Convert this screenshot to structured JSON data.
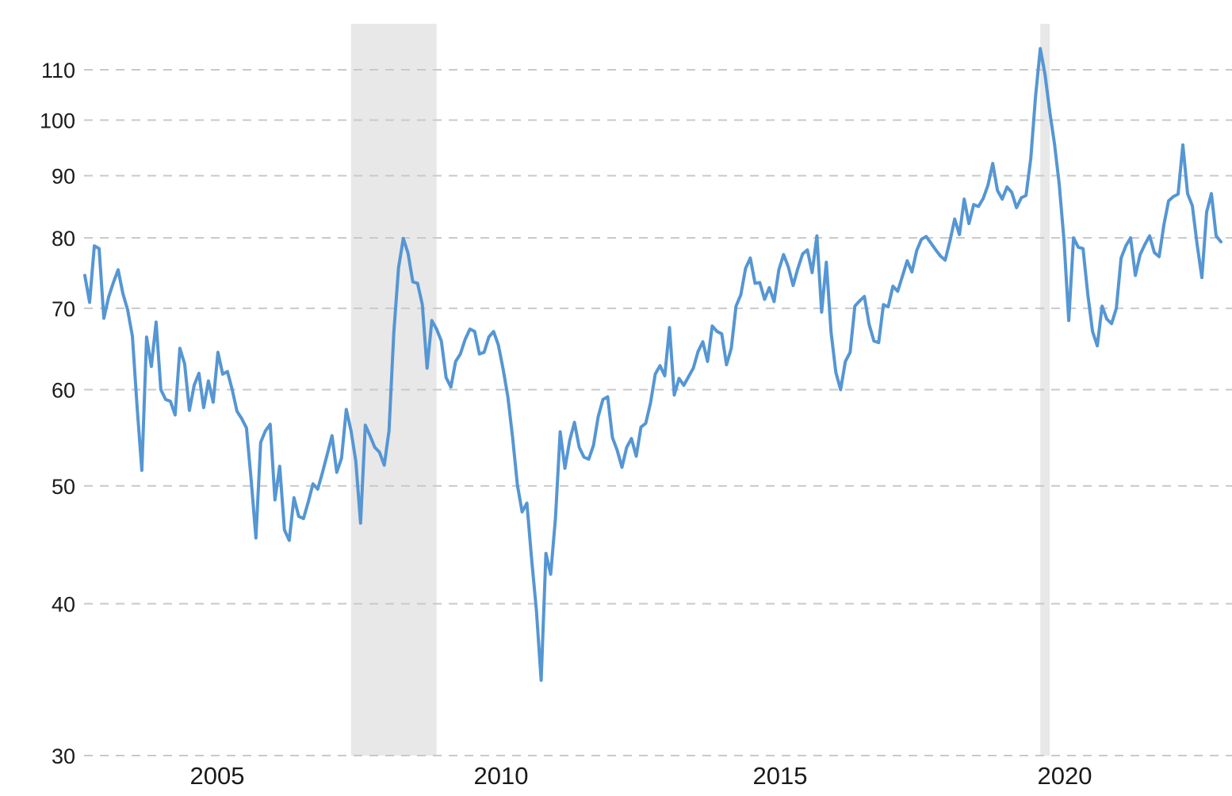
{
  "page": {
    "background_color": "#ffffff"
  },
  "chart_data": {
    "type": "line",
    "title": "",
    "x_axis": {
      "tick_labels": [
        "2005",
        "2010",
        "2015",
        "2020"
      ],
      "start": "2003-03",
      "end": "2023-02",
      "interval": "monthly"
    },
    "y_axis": {
      "scale": "log",
      "tick_labels": [
        110,
        100,
        90,
        80,
        70,
        60,
        50,
        40,
        30
      ],
      "min": 30,
      "max": 117
    },
    "grid": {
      "style": "dashed",
      "orientation": "horizontal",
      "color": "#c9c9c9"
    },
    "line_color": "#5596d3",
    "text_color": "#1a1a1a",
    "recession_bands": {
      "color": "#e8e8e8",
      "periods": [
        {
          "from": "2007-11",
          "to": "2009-05"
        },
        {
          "from": "2019-12",
          "to": "2020-02"
        }
      ]
    },
    "series": [
      {
        "name": "monthly-value",
        "start": "2003-03",
        "step_months": 1,
        "values": [
          74.5,
          70.8,
          78.8,
          78.4,
          68.7,
          71.5,
          73.5,
          75.3,
          72.0,
          69.8,
          66.4,
          58.0,
          51.5,
          66.3,
          62.7,
          68.2,
          60.0,
          58.9,
          58.7,
          57.2,
          64.9,
          63.0,
          57.7,
          60.5,
          61.9,
          58.0,
          61.0,
          58.6,
          64.4,
          61.8,
          62.1,
          60.0,
          57.6,
          56.8,
          55.8,
          50.5,
          45.3,
          54.3,
          55.5,
          56.2,
          48.7,
          51.9,
          46.0,
          45.1,
          48.9,
          47.2,
          47.0,
          48.5,
          50.2,
          49.7,
          51.3,
          53.1,
          55.0,
          51.3,
          52.7,
          57.8,
          55.5,
          52.4,
          46.6,
          56.1,
          55.0,
          53.8,
          53.3,
          52.0,
          55.5,
          66.8,
          75.6,
          79.9,
          77.7,
          73.6,
          73.4,
          70.5,
          62.5,
          68.4,
          67.3,
          65.8,
          61.4,
          60.3,
          63.3,
          64.2,
          66.0,
          67.3,
          67.0,
          64.2,
          64.4,
          66.3,
          67.0,
          65.3,
          62.4,
          59.2,
          54.8,
          50.1,
          47.6,
          48.4,
          43.5,
          39.5,
          34.6,
          44.0,
          42.3,
          47.0,
          55.4,
          51.7,
          54.5,
          56.4,
          53.8,
          52.8,
          52.6,
          54.0,
          57.0,
          58.9,
          59.2,
          54.8,
          53.5,
          51.8,
          53.8,
          54.7,
          52.9,
          55.9,
          56.3,
          58.5,
          61.8,
          62.8,
          61.6,
          67.5,
          59.4,
          61.3,
          60.5,
          61.5,
          62.5,
          64.5,
          65.7,
          63.3,
          67.7,
          67.0,
          66.7,
          62.9,
          64.9,
          70.3,
          71.8,
          75.5,
          77.0,
          73.4,
          73.5,
          71.2,
          72.8,
          70.9,
          75.3,
          77.5,
          75.7,
          73.1,
          75.5,
          77.6,
          78.2,
          74.9,
          80.3,
          69.5,
          76.4,
          66.9,
          62.0,
          60.0,
          63.3,
          64.4,
          70.3,
          71.0,
          71.6,
          67.9,
          65.8,
          65.6,
          70.5,
          70.2,
          73.0,
          72.3,
          74.4,
          76.6,
          75.0,
          78.1,
          79.8,
          80.2,
          79.2,
          78.2,
          77.3,
          76.7,
          79.5,
          82.9,
          80.5,
          86.1,
          82.2,
          85.2,
          84.9,
          86.2,
          88.4,
          92.1,
          87.5,
          86.1,
          88.1,
          87.2,
          84.7,
          86.3,
          86.7,
          93.0,
          104.6,
          114.5,
          109.0,
          101.5,
          95.6,
          88.5,
          79.6,
          68.4,
          80.0,
          78.6,
          78.4,
          71.9,
          67.0,
          65.2,
          70.3,
          68.6,
          68.0,
          70.0,
          77.0,
          78.8,
          80.0,
          74.5,
          77.5,
          79.0,
          80.3,
          77.8,
          77.2,
          82.0,
          85.8,
          86.5,
          86.9,
          95.4,
          87.0,
          85.0,
          79.0,
          74.2,
          84.0,
          87.0,
          80.3,
          79.4
        ]
      }
    ]
  }
}
